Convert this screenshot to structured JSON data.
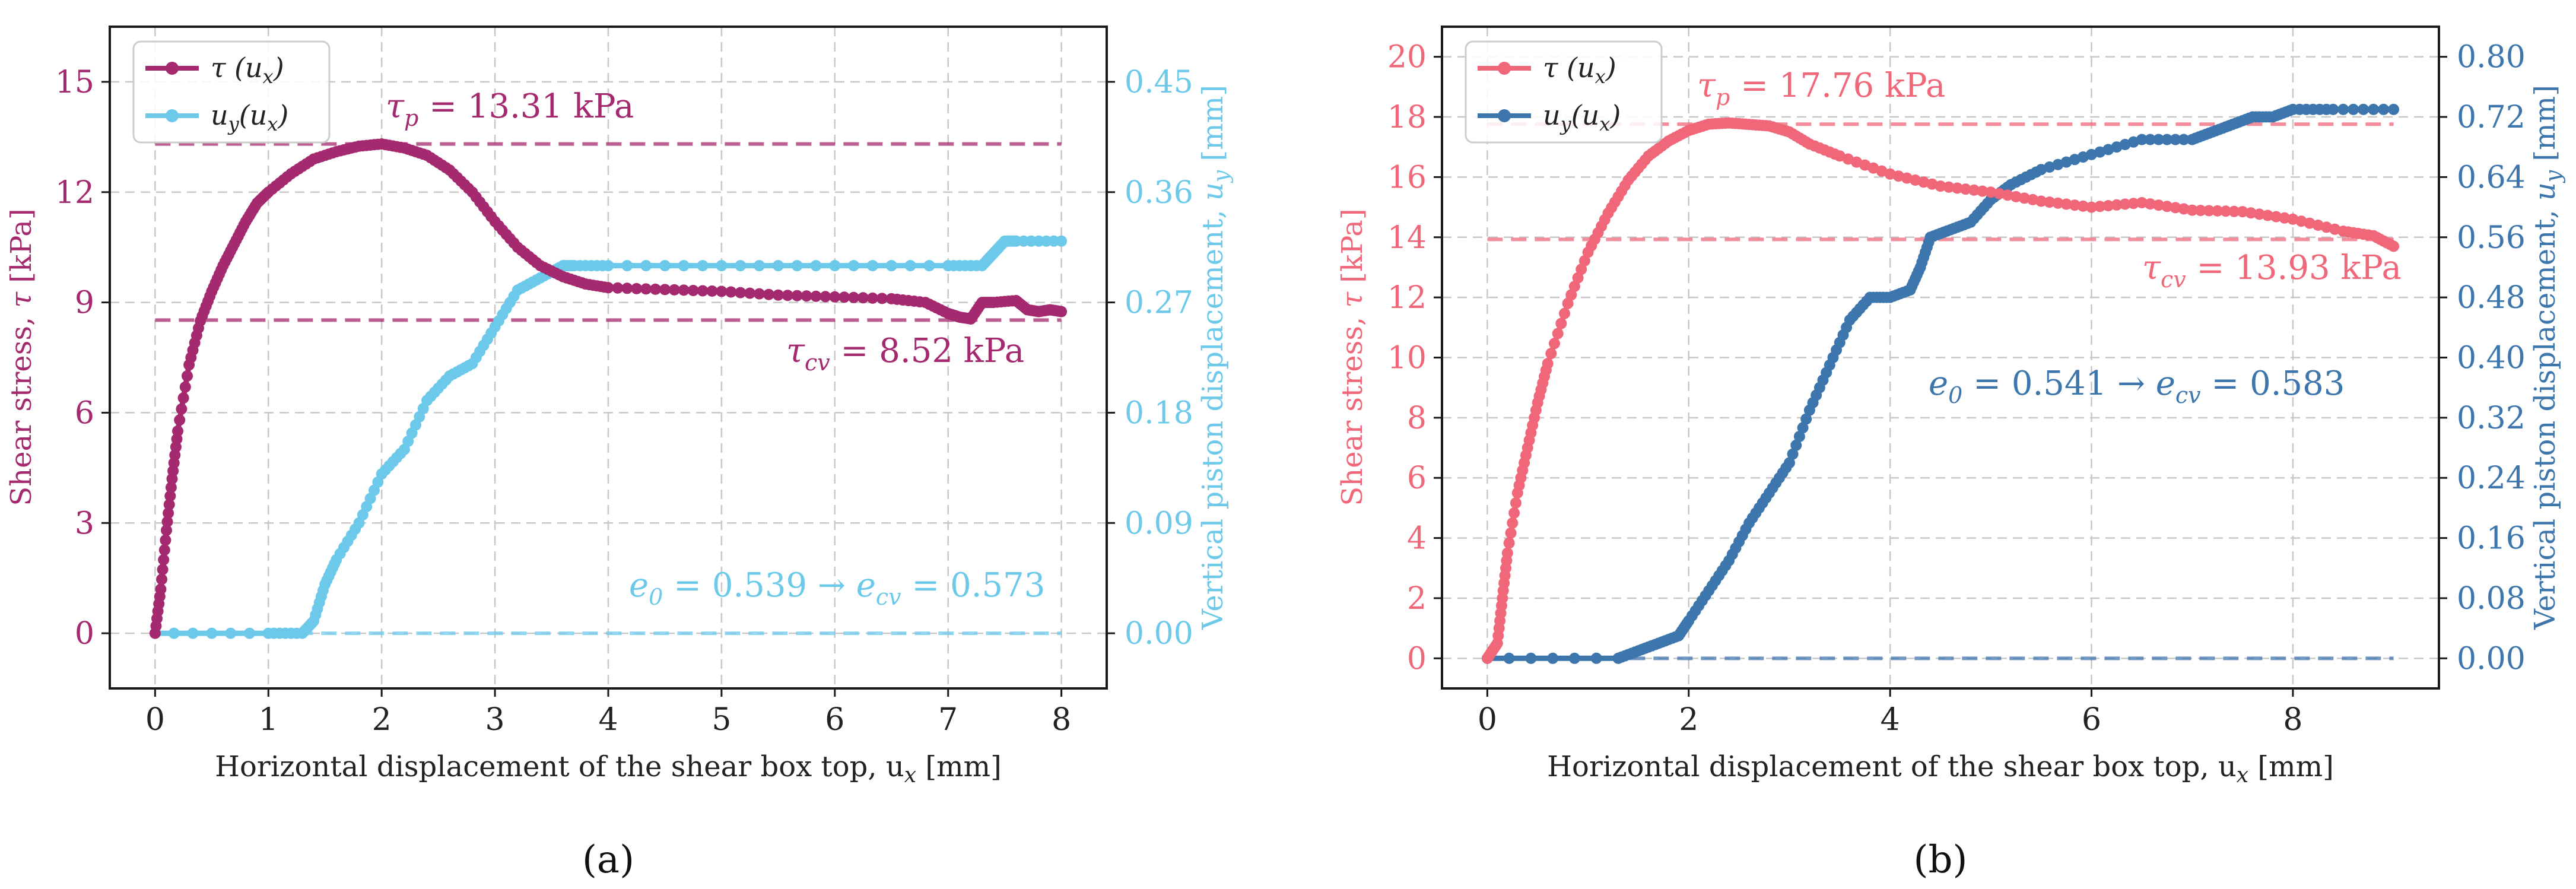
{
  "chart_data": [
    {
      "type": "line",
      "panel_label": "(a)",
      "xlabel": "Horizontal displacement of the shear box top, u_x [mm]",
      "ylabel_left": "Shear stress, τ [kPa]",
      "ylabel_right": "Vertical piston displacement, u_y [mm]",
      "xlim": [
        -0.4,
        8.4
      ],
      "ylim_left": [
        -1.5,
        16.5
      ],
      "ylim_right": [
        -0.045,
        0.495
      ],
      "xticks": [
        0,
        1,
        2,
        3,
        4,
        5,
        6,
        7,
        8
      ],
      "yticks_left": [
        0,
        3,
        6,
        9,
        12,
        15
      ],
      "yticks_right": [
        "0.00",
        "0.09",
        "0.18",
        "0.27",
        "0.36",
        "0.45"
      ],
      "grid": true,
      "legend_position": "top-left",
      "legend": [
        "τ (u_x)",
        "u_y(u_x)"
      ],
      "series": [
        {
          "name": "τ (u_x)",
          "axis": "left",
          "color": "#a4296f",
          "x": [
            0,
            0.05,
            0.1,
            0.15,
            0.2,
            0.3,
            0.4,
            0.5,
            0.6,
            0.7,
            0.8,
            0.9,
            1.0,
            1.2,
            1.4,
            1.6,
            1.8,
            2.0,
            2.2,
            2.4,
            2.6,
            2.8,
            3.0,
            3.2,
            3.4,
            3.6,
            3.8,
            4.0,
            4.5,
            5.0,
            5.5,
            6.0,
            6.5,
            6.8,
            7.0,
            7.1,
            7.2,
            7.3,
            7.4,
            7.6,
            7.7,
            7.8,
            7.9,
            8.0
          ],
          "y": [
            0,
            1.2,
            2.8,
            4.2,
            5.5,
            7.3,
            8.5,
            9.3,
            10.0,
            10.6,
            11.2,
            11.7,
            12.0,
            12.5,
            12.9,
            13.1,
            13.25,
            13.31,
            13.2,
            13.0,
            12.6,
            12.0,
            11.2,
            10.5,
            10.0,
            9.7,
            9.5,
            9.4,
            9.35,
            9.3,
            9.2,
            9.15,
            9.1,
            9.0,
            8.7,
            8.6,
            8.55,
            9.0,
            9.0,
            9.05,
            8.8,
            8.75,
            8.8,
            8.75
          ]
        },
        {
          "name": "u_y(u_x)",
          "axis": "right",
          "color": "#6cc9ea",
          "x": [
            0,
            1.0,
            1.3,
            1.4,
            1.5,
            1.6,
            1.8,
            2.0,
            2.2,
            2.4,
            2.6,
            2.8,
            3.0,
            3.2,
            3.4,
            3.6,
            3.7,
            4.0,
            5.0,
            6.0,
            7.0,
            7.3,
            7.4,
            7.5,
            7.6,
            8.0
          ],
          "y": [
            0,
            0,
            0,
            0.01,
            0.04,
            0.06,
            0.09,
            0.13,
            0.15,
            0.19,
            0.21,
            0.22,
            0.25,
            0.28,
            0.29,
            0.3,
            0.3,
            0.3,
            0.3,
            0.3,
            0.3,
            0.3,
            0.31,
            0.32,
            0.32,
            0.32
          ]
        }
      ],
      "reference_lines": [
        {
          "axis": "left",
          "value": 13.31,
          "color": "#a4296f"
        },
        {
          "axis": "left",
          "value": 8.52,
          "color": "#a4296f"
        },
        {
          "axis": "right",
          "value": 0.0,
          "color": "#6cc9ea"
        }
      ],
      "annotations": [
        {
          "text": "τ_p = 13.31 kPa",
          "color": "#a4296f"
        },
        {
          "text": "τ_cv = 8.52 kPa",
          "color": "#a4296f"
        },
        {
          "text": "e_0 = 0.539 → e_cv = 0.573",
          "color": "#6cc9ea"
        }
      ]
    },
    {
      "type": "line",
      "panel_label": "(b)",
      "xlabel": "Horizontal displacement of the shear box top, u_x [mm]",
      "ylabel_left": "Shear stress, τ [kPa]",
      "ylabel_right": "Vertical piston displacement, u_y [mm]",
      "xlim": [
        -0.45,
        9.45
      ],
      "ylim_left": [
        -1,
        21
      ],
      "ylim_right": [
        -0.04,
        0.84
      ],
      "xticks": [
        0,
        2,
        4,
        6,
        8
      ],
      "yticks_left": [
        0,
        2,
        4,
        6,
        8,
        10,
        12,
        14,
        16,
        18,
        20
      ],
      "yticks_right": [
        "0.00",
        "0.08",
        "0.16",
        "0.24",
        "0.32",
        "0.40",
        "0.48",
        "0.56",
        "0.64",
        "0.72",
        "0.80"
      ],
      "grid": true,
      "legend_position": "top-left",
      "legend": [
        "τ (u_x)",
        "u_y(u_x)"
      ],
      "series": [
        {
          "name": "τ (u_x)",
          "axis": "left",
          "color": "#ef6779",
          "x": [
            0,
            0.1,
            0.15,
            0.2,
            0.3,
            0.4,
            0.5,
            0.6,
            0.8,
            1.0,
            1.2,
            1.4,
            1.6,
            1.8,
            2.0,
            2.2,
            2.4,
            2.6,
            2.8,
            3.0,
            3.2,
            3.5,
            4.0,
            4.5,
            5.0,
            5.5,
            6.0,
            6.5,
            7.0,
            7.5,
            8.0,
            8.5,
            8.8,
            9.0
          ],
          "y": [
            0,
            0.5,
            2.0,
            3.5,
            5.5,
            7.0,
            8.5,
            9.8,
            11.8,
            13.5,
            14.8,
            15.9,
            16.7,
            17.2,
            17.55,
            17.76,
            17.8,
            17.75,
            17.7,
            17.5,
            17.1,
            16.7,
            16.1,
            15.7,
            15.5,
            15.2,
            15.0,
            15.15,
            14.9,
            14.85,
            14.6,
            14.2,
            14.05,
            13.7
          ]
        },
        {
          "name": "u_y(u_x)",
          "axis": "right",
          "color": "#3d76ad",
          "x": [
            0,
            1.3,
            1.5,
            1.7,
            1.9,
            2.0,
            2.2,
            2.4,
            2.6,
            2.8,
            3.0,
            3.2,
            3.4,
            3.6,
            3.8,
            4.0,
            4.2,
            4.3,
            4.4,
            4.6,
            4.8,
            5.0,
            5.2,
            5.5,
            6.0,
            6.5,
            7.0,
            7.2,
            7.4,
            7.6,
            7.8,
            8.0,
            8.4,
            9.0
          ],
          "y": [
            0,
            0,
            0.01,
            0.02,
            0.03,
            0.05,
            0.09,
            0.13,
            0.18,
            0.22,
            0.26,
            0.33,
            0.39,
            0.45,
            0.48,
            0.48,
            0.49,
            0.52,
            0.56,
            0.57,
            0.58,
            0.61,
            0.63,
            0.65,
            0.67,
            0.69,
            0.69,
            0.7,
            0.71,
            0.72,
            0.72,
            0.73,
            0.73,
            0.73
          ]
        }
      ],
      "reference_lines": [
        {
          "axis": "left",
          "value": 17.76,
          "color": "#ef6779"
        },
        {
          "axis": "left",
          "value": 13.93,
          "color": "#ef6779"
        },
        {
          "axis": "right",
          "value": 0.0,
          "color": "#3d76ad"
        }
      ],
      "annotations": [
        {
          "text": "τ_p = 17.76 kPa",
          "color": "#ef6779"
        },
        {
          "text": "τ_cv = 13.93 kPa",
          "color": "#ef6779"
        },
        {
          "text": "e_0 = 0.541 → e_cv = 0.583",
          "color": "#3d76ad"
        }
      ]
    }
  ],
  "captions": {
    "a": "(a)",
    "b": "(b)"
  }
}
